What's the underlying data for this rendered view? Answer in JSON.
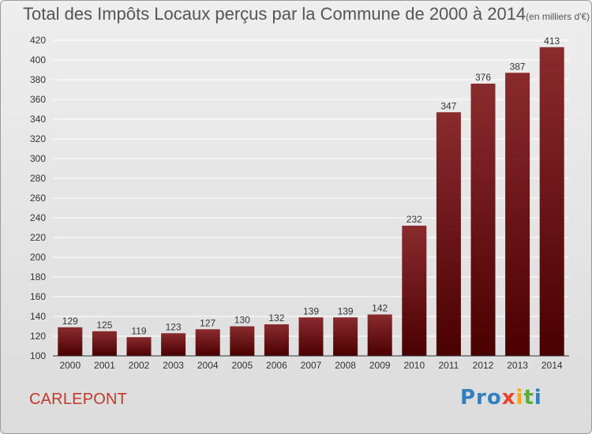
{
  "title": "Total des Impôts Locaux perçus par la Commune de 2000 à 2014",
  "unit_note": "(en milliers d'€)",
  "commune": "CARLEPONT",
  "logo_text": [
    "Pro",
    "x",
    "i",
    "t",
    "i"
  ],
  "colors": {
    "bar_top": "#8a2b2e",
    "bar_bottom": "#4a0000",
    "commune_text": "#c0392b",
    "grid": "#ffffff"
  },
  "chart_data": {
    "type": "bar",
    "title": "Total des Impôts Locaux perçus par la Commune de 2000 à 2014",
    "subtitle": "(en milliers d'€)",
    "categories": [
      "2000",
      "2001",
      "2002",
      "2003",
      "2004",
      "2005",
      "2006",
      "2007",
      "2008",
      "2009",
      "2010",
      "2011",
      "2012",
      "2013",
      "2014"
    ],
    "values": [
      129,
      125,
      119,
      123,
      127,
      130,
      132,
      139,
      139,
      142,
      232,
      347,
      376,
      387,
      413
    ],
    "ylim": [
      100,
      420
    ],
    "yticks": [
      100,
      120,
      140,
      160,
      180,
      200,
      220,
      240,
      260,
      280,
      300,
      320,
      340,
      360,
      380,
      400,
      420
    ],
    "grid": true,
    "data_labels": true
  }
}
